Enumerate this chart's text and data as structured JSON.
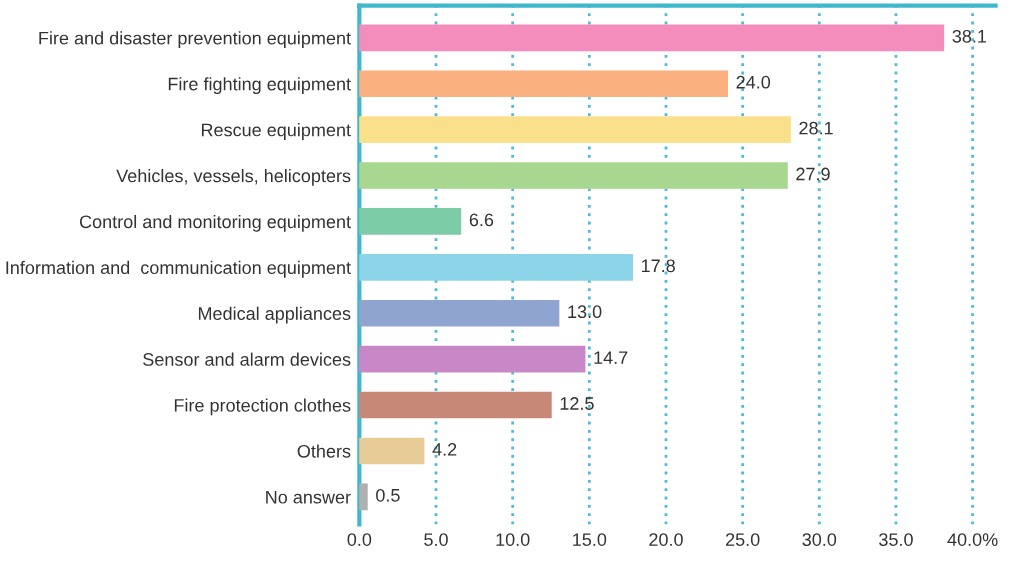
{
  "chart_data": {
    "type": "bar",
    "orientation": "horizontal",
    "categories": [
      "Fire and disaster prevention equipment",
      "Fire fighting equipment",
      "Rescue equipment",
      "Vehicles, vessels, helicopters",
      "Control and monitoring equipment",
      "Information and  communication equipment",
      "Medical appliances",
      "Sensor and alarm devices",
      "Fire protection clothes",
      "Others",
      "No answer"
    ],
    "values": [
      38.1,
      24.0,
      28.1,
      27.9,
      6.6,
      17.8,
      13.0,
      14.7,
      12.5,
      4.2,
      0.5
    ],
    "value_labels": [
      "38.1",
      "24.0",
      "28.1",
      "27.9",
      "6.6",
      "17.8",
      "13.0",
      "14.7",
      "12.5",
      "4.2",
      "0.5"
    ],
    "colors": [
      "#f48cbc",
      "#fbb080",
      "#fbe08c",
      "#a8d890",
      "#7ccca8",
      "#8cd4e8",
      "#90a4d0",
      "#c888c8",
      "#c88878",
      "#e8cc98",
      "#b0b0b0"
    ],
    "xlim": [
      0,
      41.5
    ],
    "xticks": [
      {
        "value": 0,
        "label": "0.0"
      },
      {
        "value": 5,
        "label": "5.0"
      },
      {
        "value": 10,
        "label": "10.0"
      },
      {
        "value": 15,
        "label": "15.0"
      },
      {
        "value": 20,
        "label": "20.0"
      },
      {
        "value": 25,
        "label": "25.0"
      },
      {
        "value": 30,
        "label": "30.0"
      },
      {
        "value": 35,
        "label": "35.0"
      },
      {
        "value": 40,
        "label": "40.0%"
      }
    ],
    "grid": "x"
  }
}
